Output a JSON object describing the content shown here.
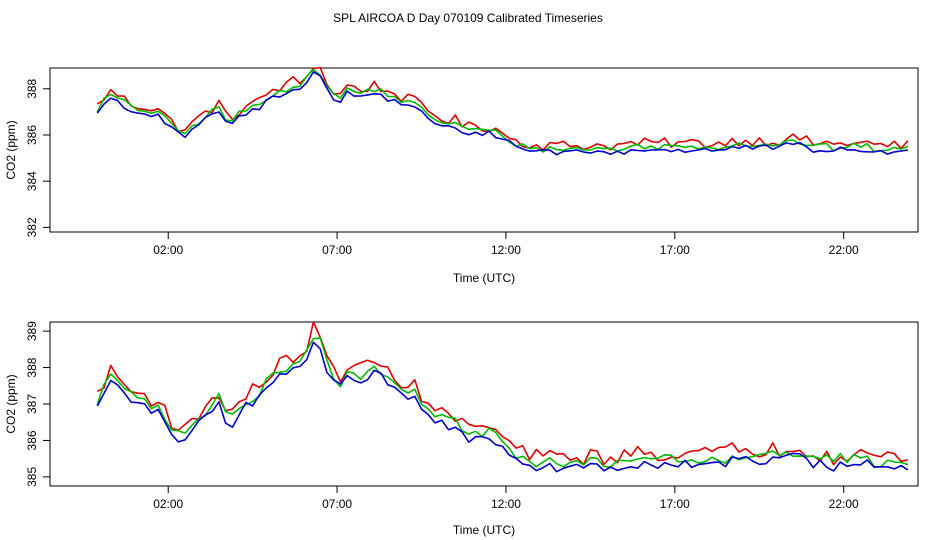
{
  "figure": {
    "title": "SPL AIRCOA D  Day 070109  Calibrated Timeseries"
  },
  "colors": {
    "red": "#dd0000",
    "green": "#00bb00",
    "blue": "#0000cc",
    "axis": "#000000"
  },
  "chart_data": [
    {
      "type": "line",
      "title": "",
      "xlabel": "Time (UTC)",
      "ylabel": "CO2 (ppm)",
      "xlim": [
        -1.5,
        24.2
      ],
      "ylim": [
        381.8,
        388.9
      ],
      "xticks": [
        2,
        7,
        12,
        17,
        22
      ],
      "xtick_labels": [
        "02:00",
        "07:00",
        "12:00",
        "17:00",
        "22:00"
      ],
      "yticks": [
        382,
        384,
        386,
        388
      ],
      "ytick_labels": [
        "382",
        "384",
        "386",
        "388"
      ],
      "x_start": -0.1,
      "x_step": 0.2,
      "series_order": [
        "red",
        "green",
        "blue"
      ],
      "base": [
        387.0,
        387.4,
        387.6,
        387.5,
        387.3,
        387.1,
        387.0,
        387.0,
        386.9,
        386.9,
        386.6,
        386.3,
        386.1,
        386.0,
        386.2,
        386.5,
        386.7,
        386.9,
        387.1,
        386.6,
        386.5,
        386.8,
        387.0,
        387.1,
        387.2,
        387.5,
        387.7,
        387.8,
        387.9,
        388.1,
        388.0,
        388.3,
        388.8,
        388.6,
        388.0,
        387.6,
        387.5,
        387.9,
        387.8,
        387.7,
        387.8,
        387.9,
        387.8,
        387.6,
        387.6,
        387.4,
        387.3,
        387.2,
        387.0,
        386.8,
        386.6,
        386.5,
        386.4,
        386.4,
        386.2,
        386.1,
        386.2,
        386.1,
        386.1,
        386.0,
        385.8,
        385.7,
        385.5,
        385.4,
        385.4,
        385.3,
        385.3,
        385.3,
        385.3,
        385.3,
        385.3,
        385.3,
        385.3,
        385.3,
        385.3,
        385.3,
        385.3,
        385.3,
        385.3,
        385.4,
        385.4,
        385.4,
        385.4,
        385.4,
        385.4,
        385.4,
        385.4,
        385.4,
        385.4,
        385.4,
        385.4,
        385.4,
        385.4,
        385.4,
        385.5,
        385.5,
        385.5,
        385.5,
        385.5,
        385.5,
        385.5,
        385.5,
        385.6,
        385.6,
        385.6,
        385.5,
        385.4,
        385.4,
        385.4,
        385.3,
        385.4,
        385.4,
        385.4,
        385.4,
        385.4,
        385.3,
        385.3,
        385.3,
        385.3,
        385.3,
        385.3
      ],
      "offsets": {
        "red": 0.25,
        "green": 0.1,
        "blue": -0.05
      },
      "jitter": {
        "red": 0.22,
        "green": 0.14,
        "blue": 0.12
      },
      "series": [
        {
          "name": "red"
        },
        {
          "name": "green"
        },
        {
          "name": "blue"
        }
      ]
    },
    {
      "type": "line",
      "title": "",
      "xlabel": "Time (UTC)",
      "ylabel": "CO2 (ppm)",
      "xlim": [
        -1.5,
        24.2
      ],
      "ylim": [
        384.75,
        389.25
      ],
      "xticks": [
        2,
        7,
        12,
        17,
        22
      ],
      "xtick_labels": [
        "02:00",
        "07:00",
        "12:00",
        "17:00",
        "22:00"
      ],
      "yticks": [
        385,
        386,
        387,
        388,
        389
      ],
      "ytick_labels": [
        "385",
        "386",
        "387",
        "388",
        "389"
      ],
      "x_start": -0.1,
      "x_step": 0.2,
      "series_order": [
        "red",
        "green",
        "blue"
      ],
      "base": [
        387.0,
        387.4,
        387.6,
        387.5,
        387.3,
        387.1,
        387.0,
        387.0,
        386.9,
        386.9,
        386.6,
        386.3,
        386.1,
        386.0,
        386.2,
        386.5,
        386.7,
        386.9,
        387.1,
        386.6,
        386.5,
        386.8,
        387.0,
        387.1,
        387.2,
        387.5,
        387.7,
        387.8,
        387.9,
        388.1,
        388.0,
        388.3,
        388.8,
        388.6,
        388.0,
        387.6,
        387.5,
        387.9,
        387.8,
        387.7,
        387.8,
        387.9,
        387.8,
        387.6,
        387.6,
        387.4,
        387.3,
        387.2,
        387.0,
        386.8,
        386.6,
        386.5,
        386.4,
        386.4,
        386.2,
        386.1,
        386.2,
        386.1,
        386.1,
        386.0,
        385.8,
        385.7,
        385.5,
        385.4,
        385.4,
        385.3,
        385.3,
        385.3,
        385.3,
        385.3,
        385.3,
        385.3,
        385.3,
        385.3,
        385.3,
        385.3,
        385.3,
        385.3,
        385.3,
        385.4,
        385.4,
        385.4,
        385.4,
        385.4,
        385.4,
        385.4,
        385.4,
        385.4,
        385.4,
        385.4,
        385.4,
        385.4,
        385.4,
        385.4,
        385.5,
        385.5,
        385.5,
        385.5,
        385.5,
        385.5,
        385.5,
        385.5,
        385.6,
        385.6,
        385.6,
        385.5,
        385.4,
        385.4,
        385.4,
        385.3,
        385.4,
        385.4,
        385.4,
        385.4,
        385.4,
        385.3,
        385.3,
        385.3,
        385.3,
        385.3,
        385.3
      ],
      "offsets": {
        "red": 0.25,
        "green": 0.1,
        "blue": -0.05
      },
      "jitter": {
        "red": 0.22,
        "green": 0.14,
        "blue": 0.12
      },
      "series": [
        {
          "name": "red"
        },
        {
          "name": "green"
        },
        {
          "name": "blue"
        }
      ]
    }
  ]
}
